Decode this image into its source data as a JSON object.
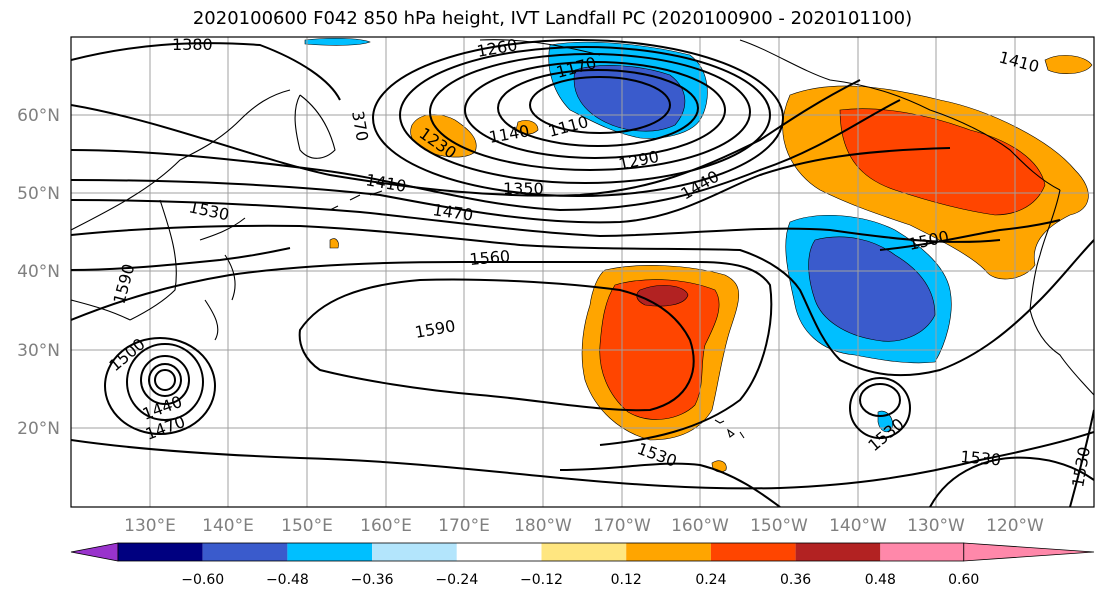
{
  "title": "2020100600 F042 850 hPa height, IVT Landfall PC (2020100900 - 2020101100)",
  "lat_labels": [
    "60°N",
    "50°N",
    "40°N",
    "30°N",
    "20°N"
  ],
  "lon_labels": [
    "130°E",
    "140°E",
    "150°E",
    "160°E",
    "170°E",
    "180°W",
    "170°W",
    "160°W",
    "150°W",
    "140°W",
    "130°W",
    "120°W"
  ],
  "contour_labels": [
    "1380",
    "1260",
    "1410",
    "1170",
    "1230",
    "1140",
    "1110",
    "1290",
    "1350",
    "1440",
    "1470",
    "1530",
    "1560",
    "1500",
    "1590",
    "1590",
    "1500",
    "1440",
    "1470",
    "1530",
    "1530",
    "1530",
    "1530",
    "1410",
    "370"
  ],
  "colorbar": {
    "ticks": [
      "−0.60",
      "−0.48",
      "−0.36",
      "−0.24",
      "−0.12",
      "0.12",
      "0.24",
      "0.36",
      "0.48",
      "0.60"
    ],
    "colors": [
      "#9933cc",
      "#000080",
      "#3a5bcc",
      "#00bfff",
      "#b3e5fc",
      "#ffffff",
      "#ffe680",
      "#ffa500",
      "#ff4500",
      "#b22222",
      "#ff88aa"
    ]
  },
  "palette": {
    "orange": "#ffa500",
    "redorange": "#ff4500",
    "darkred": "#b22222",
    "lightyellow": "#ffe680",
    "cyan": "#00bfff",
    "lightblue": "#b3e5fc",
    "royal": "#3a5bcc",
    "grid": "#a0a0a0",
    "label_gray": "#808080"
  }
}
